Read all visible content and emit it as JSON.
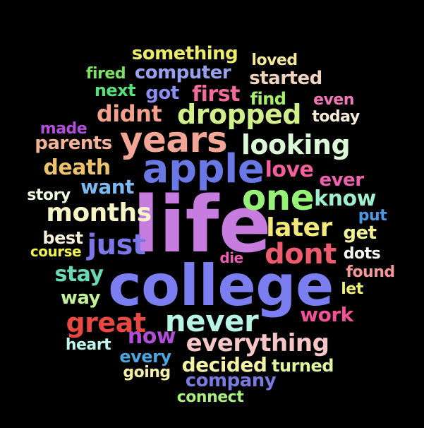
{
  "background": "#000000",
  "words": [
    {
      "text": "life",
      "color": "#c77de0"
    },
    {
      "text": "college",
      "color": "#7a7ef0"
    },
    {
      "text": "apple",
      "color": "#6a78e6"
    },
    {
      "text": "years",
      "color": "#f3a596"
    },
    {
      "text": "one",
      "color": "#96f276"
    },
    {
      "text": "never",
      "color": "#b7f6e3"
    },
    {
      "text": "dropped",
      "color": "#d2f08a"
    },
    {
      "text": "looking",
      "color": "#dcf9d7"
    },
    {
      "text": "months",
      "color": "#f5f5c6"
    },
    {
      "text": "just",
      "color": "#7d76e8"
    },
    {
      "text": "dont",
      "color": "#f05a6e"
    },
    {
      "text": "later",
      "color": "#f1e978"
    },
    {
      "text": "great",
      "color": "#e84840"
    },
    {
      "text": "everything",
      "color": "#f7c6c7"
    },
    {
      "text": "know",
      "color": "#9ff0d2"
    },
    {
      "text": "love",
      "color": "#f65f9b"
    },
    {
      "text": "first",
      "color": "#f26b9c"
    },
    {
      "text": "didnt",
      "color": "#f4a08c"
    },
    {
      "text": "death",
      "color": "#eec26a"
    },
    {
      "text": "want",
      "color": "#7cb8f2"
    },
    {
      "text": "stay",
      "color": "#6ad8b4"
    },
    {
      "text": "now",
      "color": "#b04ed8"
    },
    {
      "text": "decided",
      "color": "#f4f2a4"
    },
    {
      "text": "company",
      "color": "#7a7ae0"
    },
    {
      "text": "something",
      "color": "#ecec68"
    },
    {
      "text": "computer",
      "color": "#9aa0f0"
    },
    {
      "text": "started",
      "color": "#f2d4bc"
    },
    {
      "text": "parents",
      "color": "#f4b296"
    },
    {
      "text": "ever",
      "color": "#f060b0"
    },
    {
      "text": "work",
      "color": "#f3509a"
    },
    {
      "text": "got",
      "color": "#8a8ef2"
    },
    {
      "text": "find",
      "color": "#a6f26e"
    },
    {
      "text": "next",
      "color": "#56e07c"
    },
    {
      "text": "best",
      "color": "#f6f1d8"
    },
    {
      "text": "get",
      "color": "#f2f294"
    },
    {
      "text": "way",
      "color": "#c4f09a"
    },
    {
      "text": "every",
      "color": "#4ca6e0"
    },
    {
      "text": "turned",
      "color": "#e2f69e"
    },
    {
      "text": "story",
      "color": "#eefadf"
    },
    {
      "text": "found",
      "color": "#f69898"
    },
    {
      "text": "fired",
      "color": "#7ee060"
    },
    {
      "text": "loved",
      "color": "#f4ea9c"
    },
    {
      "text": "made",
      "color": "#b24edc"
    },
    {
      "text": "even",
      "color": "#f276b6"
    },
    {
      "text": "today",
      "color": "#f6ebd8"
    },
    {
      "text": "put",
      "color": "#4c9ae4"
    },
    {
      "text": "dots",
      "color": "#f8f8f4"
    },
    {
      "text": "course",
      "color": "#eef04c"
    },
    {
      "text": "die",
      "color": "#ea5db2"
    },
    {
      "text": "let",
      "color": "#f2f272"
    },
    {
      "text": "heart",
      "color": "#bdf8ed"
    },
    {
      "text": "going",
      "color": "#f6f0a4"
    },
    {
      "text": "connect",
      "color": "#a9f07e"
    }
  ]
}
